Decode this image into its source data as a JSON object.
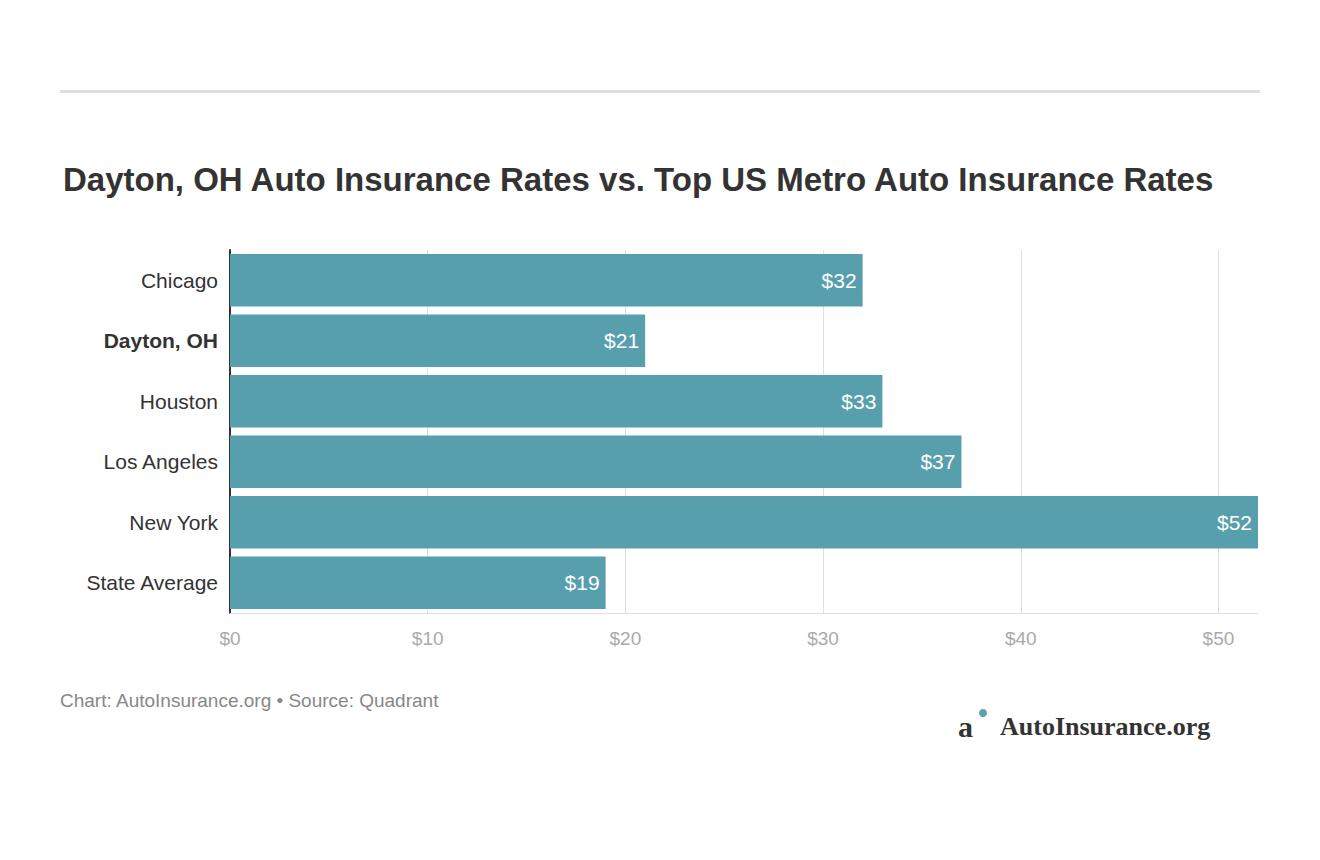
{
  "chart_data": {
    "type": "bar",
    "orientation": "horizontal",
    "title": "Dayton, OH Auto Insurance Rates vs. Top US Metro Auto Insurance Rates",
    "categories": [
      "Chicago",
      "Dayton, OH",
      "Houston",
      "Los Angeles",
      "New York",
      "State Average"
    ],
    "values": [
      32,
      21,
      33,
      37,
      52,
      19
    ],
    "value_labels": [
      "$32",
      "$21",
      "$33",
      "$37",
      "$52",
      "$19"
    ],
    "data_labels": true,
    "color": "#589fae",
    "xlim": [
      0,
      52
    ],
    "xticks": [
      {
        "value": 0,
        "label": "$0"
      },
      {
        "value": 10,
        "label": "$10"
      },
      {
        "value": 20,
        "label": "$20"
      },
      {
        "value": 30,
        "label": "$30"
      },
      {
        "value": 40,
        "label": "$40"
      },
      {
        "value": 50,
        "label": "$50"
      }
    ],
    "grid": true,
    "source": "Chart: AutoInsurance.org • Source: Quadrant",
    "brand": "AutoInsurance.org"
  }
}
